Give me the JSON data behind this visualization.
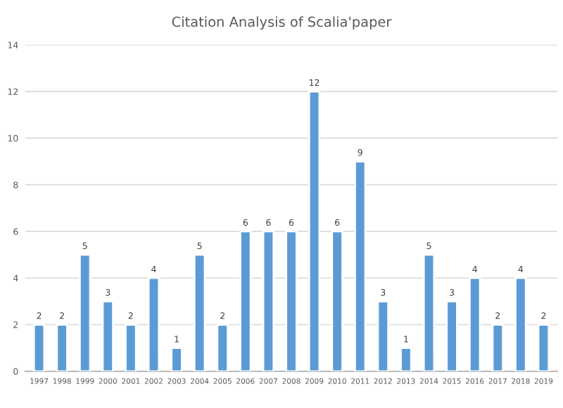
{
  "chart_data": {
    "type": "bar",
    "title": "Citation Analysis of Scalia'paper",
    "categories": [
      "1997",
      "1998",
      "1999",
      "2000",
      "2001",
      "2002",
      "2003",
      "2004",
      "2005",
      "2006",
      "2007",
      "2008",
      "2009",
      "2010",
      "2011",
      "2012",
      "2013",
      "2014",
      "2015",
      "2016",
      "2017",
      "2018",
      "2019"
    ],
    "values": [
      2,
      2,
      5,
      3,
      2,
      4,
      1,
      5,
      2,
      6,
      6,
      6,
      12,
      6,
      9,
      3,
      1,
      5,
      3,
      4,
      2,
      4,
      2
    ],
    "color": "#5b9bd5",
    "ylim": [
      0,
      14
    ],
    "yticks": [
      0,
      2,
      4,
      6,
      8,
      10,
      12,
      14
    ],
    "grid": "y",
    "data_labels": true,
    "legend": false
  }
}
